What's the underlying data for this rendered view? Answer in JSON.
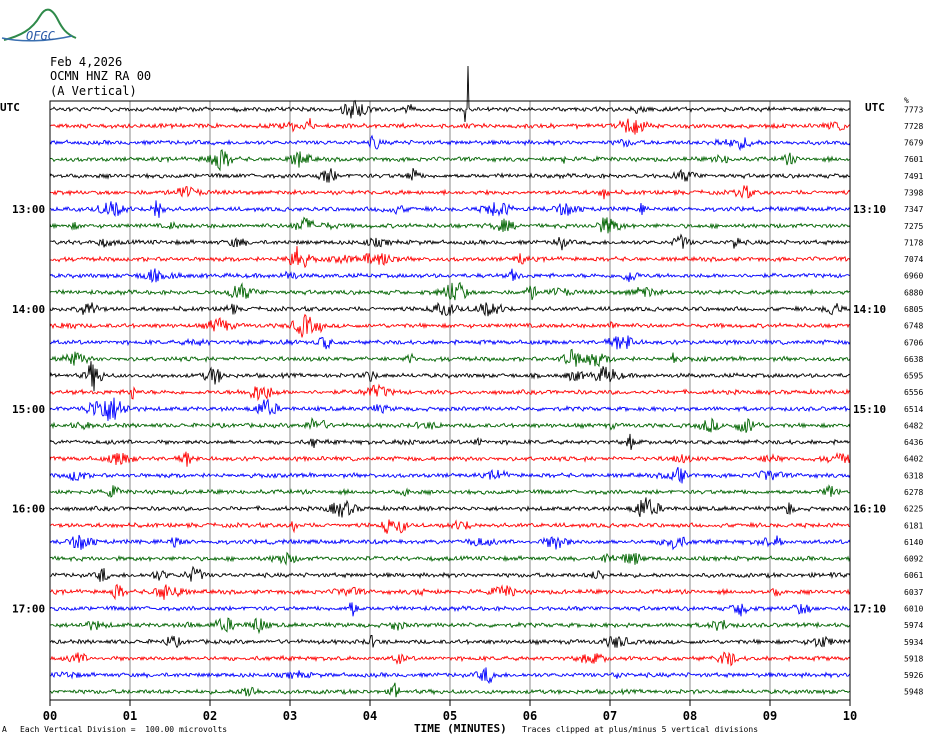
{
  "header": {
    "logo_text": "OFGC",
    "date": "Feb 4,2026",
    "station": "OCMN HNZ RA 00",
    "component": "(A Vertical)"
  },
  "chart_data": {
    "type": "line",
    "title": "",
    "xlabel": "TIME (MINUTES)",
    "ylabel_left": "UTC",
    "ylabel_right": "UTC",
    "right_top_label": "%",
    "xlim": [
      0,
      10
    ],
    "x_ticks": [
      "00",
      "01",
      "02",
      "03",
      "04",
      "05",
      "06",
      "07",
      "08",
      "09",
      "10"
    ],
    "left_hour_labels": [
      {
        "row": 6,
        "label": "13:00"
      },
      {
        "row": 12,
        "label": "14:00"
      },
      {
        "row": 18,
        "label": "15:00"
      },
      {
        "row": 24,
        "label": "16:00"
      },
      {
        "row": 30,
        "label": "17:00"
      }
    ],
    "right_hour_labels": [
      {
        "row": 6,
        "label": "13:10"
      },
      {
        "row": 12,
        "label": "14:10"
      },
      {
        "row": 18,
        "label": "15:10"
      },
      {
        "row": 24,
        "label": "16:10"
      },
      {
        "row": 30,
        "label": "17:10"
      }
    ],
    "trace_colors": [
      "#000000",
      "#ff0000",
      "#0000ff",
      "#006400"
    ],
    "trace_values": [
      "7773",
      "7728",
      "7679",
      "7601",
      "7491",
      "7398",
      "7347",
      "7275",
      "7178",
      "7074",
      "6960",
      "6880",
      "6805",
      "6748",
      "6706",
      "6638",
      "6595",
      "6556",
      "6514",
      "6482",
      "6436",
      "6402",
      "6318",
      "6278",
      "6225",
      "6181",
      "6140",
      "6092",
      "6061",
      "6037",
      "6010",
      "5974",
      "5934",
      "5918",
      "5926",
      "5948"
    ],
    "footer_left": "Each Vertical Division =  100.00 microvolts",
    "footer_right": "Traces clipped at plus/minus 5 vertical divisions",
    "footer_mark": "A"
  }
}
